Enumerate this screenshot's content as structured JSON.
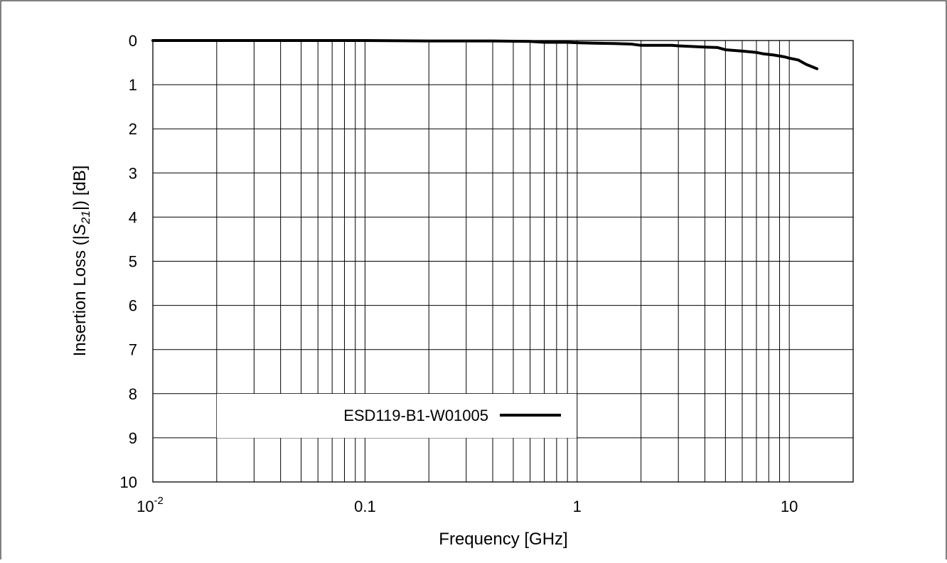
{
  "chart_data": {
    "type": "line",
    "title": "",
    "xlabel": "Frequency [GHz]",
    "ylabel": {
      "prefix": "Insertion Loss (|",
      "var": "S",
      "sub": "21",
      "suffix": "|) [dB]"
    },
    "x_scale": "log",
    "xlim": [
      0.01,
      20
    ],
    "ylim": [
      0,
      10
    ],
    "y_inverted": true,
    "x_ticks": [
      {
        "base": "10",
        "exp": "-2",
        "label": ""
      },
      {
        "label": "0.1"
      },
      {
        "label": "1"
      },
      {
        "label": "10"
      }
    ],
    "y_ticks": [
      "0",
      "1",
      "2",
      "3",
      "4",
      "5",
      "6",
      "7",
      "8",
      "9",
      "10"
    ],
    "grid": true,
    "legend": {
      "position": "bottom-left",
      "entries": [
        "ESD119-B1-W01005"
      ]
    },
    "line_color": "#000000",
    "series": [
      {
        "name": "ESD119-B1-W01005",
        "x": [
          0.01,
          0.02,
          0.05,
          0.1,
          0.2,
          0.4,
          0.6,
          0.7,
          0.9,
          1.0,
          1.2,
          1.5,
          1.8,
          2.0,
          2.5,
          2.8,
          3.0,
          4.0,
          4.6,
          5.0,
          6.0,
          7.0,
          7.5,
          8.5,
          9.5,
          10.0,
          11.0,
          12.0,
          13.5
        ],
        "y": [
          0.0,
          0.0,
          0.0,
          0.0,
          0.01,
          0.01,
          0.02,
          0.04,
          0.04,
          0.05,
          0.06,
          0.07,
          0.08,
          0.11,
          0.11,
          0.11,
          0.12,
          0.15,
          0.16,
          0.21,
          0.24,
          0.27,
          0.3,
          0.33,
          0.37,
          0.4,
          0.44,
          0.54,
          0.64
        ]
      }
    ]
  }
}
